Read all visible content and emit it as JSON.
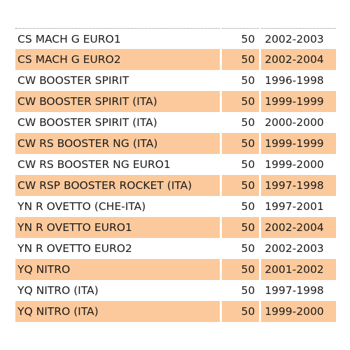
{
  "colors": {
    "row_alt_background": "#fbc99b",
    "row_background": "#ffffff"
  },
  "rows": [
    {
      "model": "CS MACH G EURO1",
      "qty": "50",
      "years": "2002-2003"
    },
    {
      "model": "CS MACH G EURO2",
      "qty": "50",
      "years": "2002-2004"
    },
    {
      "model": "CW BOOSTER SPIRIT",
      "qty": "50",
      "years": "1996-1998"
    },
    {
      "model": "CW BOOSTER SPIRIT (ITA)",
      "qty": "50",
      "years": "1999-1999"
    },
    {
      "model": "CW BOOSTER SPIRIT (ITA)",
      "qty": "50",
      "years": "2000-2000"
    },
    {
      "model": "CW RS BOOSTER NG (ITA)",
      "qty": "50",
      "years": "1999-1999"
    },
    {
      "model": "CW RS BOOSTER NG EURO1",
      "qty": "50",
      "years": "1999-2000"
    },
    {
      "model": "CW RSP BOOSTER ROCKET (ITA)",
      "qty": "50",
      "years": "1997-1998"
    },
    {
      "model": "YN R OVETTO (CHE-ITA)",
      "qty": "50",
      "years": "1997-2001"
    },
    {
      "model": "YN R OVETTO EURO1",
      "qty": "50",
      "years": "2002-2004"
    },
    {
      "model": "YN R OVETTO EURO2",
      "qty": "50",
      "years": "2002-2003"
    },
    {
      "model": "YQ NITRO",
      "qty": "50",
      "years": "2001-2002"
    },
    {
      "model": "YQ NITRO (ITA)",
      "qty": "50",
      "years": "1997-1998"
    },
    {
      "model": "YQ NITRO (ITA)",
      "qty": "50",
      "years": "1999-2000"
    }
  ]
}
